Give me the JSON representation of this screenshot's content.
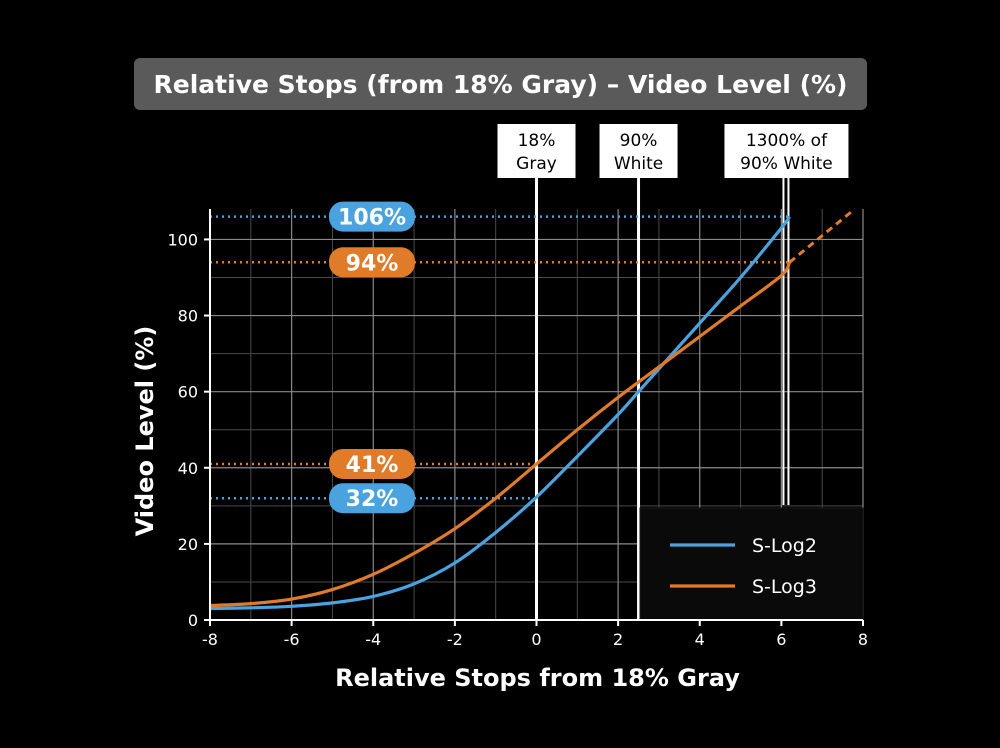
{
  "title": "Relative Stops (from 18% Gray) – Video Level (%)",
  "chart_data": {
    "type": "line",
    "title": "Relative Stops (from 18% Gray) – Video Level (%)",
    "xlabel": "Relative Stops from 18% Gray",
    "ylabel": "Video Level (%)",
    "xlim": [
      -8,
      8
    ],
    "ylim": [
      0,
      108
    ],
    "xticks": [
      "-8",
      "-6",
      "-4",
      "-2",
      "0",
      "2",
      "4",
      "6",
      "8"
    ],
    "yticks": [
      "0",
      "20",
      "40",
      "60",
      "80",
      "100"
    ],
    "grid": true,
    "legend_position": "bottom-right",
    "series": [
      {
        "name": "S-Log2",
        "color": "#4aa3df",
        "points": [
          [
            -8,
            3
          ],
          [
            -7,
            3.2
          ],
          [
            -6,
            3.6
          ],
          [
            -5,
            4.5
          ],
          [
            -4,
            6.2
          ],
          [
            -3,
            9.5
          ],
          [
            -2,
            15
          ],
          [
            -1,
            23
          ],
          [
            0,
            32.3
          ],
          [
            1,
            43
          ],
          [
            2,
            54
          ],
          [
            2.5,
            60
          ],
          [
            3,
            66
          ],
          [
            4,
            78
          ],
          [
            5,
            90
          ],
          [
            6,
            103
          ],
          [
            6.2,
            106
          ]
        ]
      },
      {
        "name": "S-Log3",
        "color": "#e07b2a",
        "points": [
          [
            -8,
            3.8
          ],
          [
            -7,
            4.3
          ],
          [
            -6,
            5.5
          ],
          [
            -5,
            8
          ],
          [
            -4,
            12
          ],
          [
            -3,
            17.5
          ],
          [
            -2,
            24
          ],
          [
            -1,
            32
          ],
          [
            0,
            41
          ],
          [
            1,
            50
          ],
          [
            2,
            58.5
          ],
          [
            3,
            66.5
          ],
          [
            4,
            74.5
          ],
          [
            5,
            82.5
          ],
          [
            6,
            90.5
          ],
          [
            6.2,
            94
          ]
        ],
        "extension": [
          [
            6.2,
            94
          ],
          [
            7,
            101
          ],
          [
            7.8,
            108
          ]
        ]
      }
    ],
    "reference_lines": [
      {
        "x": 0,
        "label_line1": "18%",
        "label_line2": "Gray"
      },
      {
        "x": 2.5,
        "label_line1": "90%",
        "label_line2": "White"
      },
      {
        "x": 6.1,
        "label_line1": "1300% of",
        "label_line2": "90% White"
      }
    ],
    "callouts": [
      {
        "y": 106,
        "label": "106%",
        "series": "S-Log2",
        "color": "#4aa3df"
      },
      {
        "y": 94,
        "label": "94%",
        "series": "S-Log3",
        "color": "#e07b2a"
      },
      {
        "y": 41,
        "label": "41%",
        "series": "S-Log3",
        "color": "#e07b2a"
      },
      {
        "y": 32,
        "label": "32%",
        "series": "S-Log2",
        "color": "#4aa3df"
      }
    ]
  }
}
